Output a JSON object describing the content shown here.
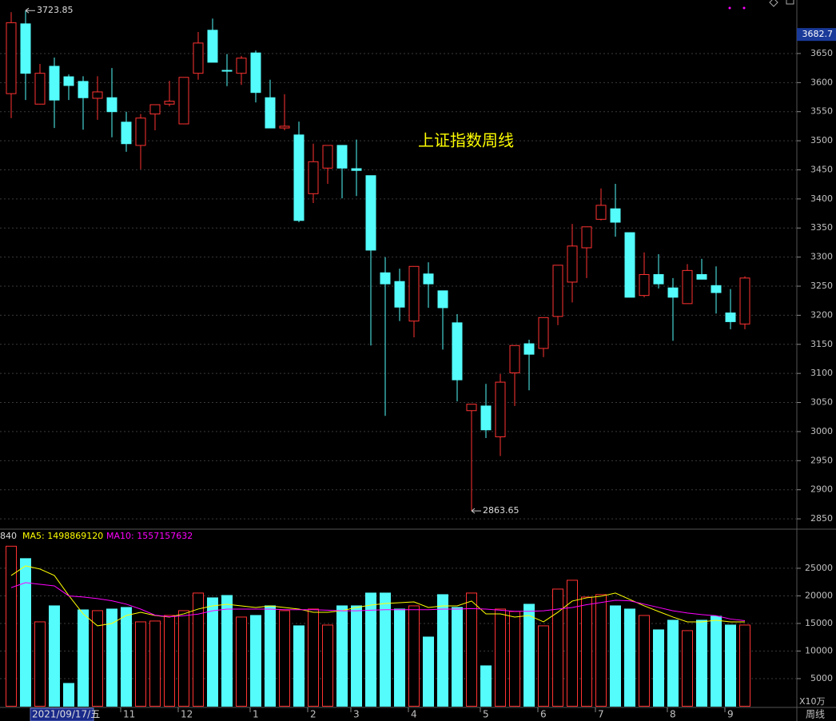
{
  "chart_data": {
    "type": "candlestick",
    "title": "上证指数周线",
    "up_color": "#ff3232",
    "down_color": "#54fcfc",
    "grid": true,
    "ylim": [
      2835,
      3742
    ],
    "yticks": [
      2850,
      2900,
      2950,
      3000,
      3050,
      3100,
      3150,
      3200,
      3250,
      3300,
      3350,
      3400,
      3450,
      3500,
      3550,
      3600,
      3650
    ],
    "price_marker": 3682.7,
    "cursor_date": "2021/09/17/五",
    "period_label": "周线",
    "categories": [
      null,
      null,
      null,
      null,
      null,
      null,
      null,
      null,
      "11",
      null,
      null,
      null,
      "12",
      null,
      null,
      null,
      null,
      "1",
      null,
      null,
      null,
      "2",
      null,
      null,
      "3",
      null,
      null,
      null,
      "4",
      null,
      null,
      null,
      null,
      "5",
      null,
      null,
      null,
      "6",
      null,
      null,
      null,
      "7",
      null,
      null,
      null,
      null,
      "8",
      null,
      null,
      null,
      "9",
      null
    ],
    "open": [
      3581,
      3701,
      3563,
      3628,
      3610,
      3602,
      3573,
      3574,
      3532,
      3492,
      3546,
      3563,
      3529,
      3616,
      3690,
      3621,
      3616,
      3651,
      3574,
      3522,
      3510,
      3409,
      3453,
      3492,
      3452,
      3440,
      3273,
      3258,
      3190,
      3271,
      3242,
      3187,
      3036,
      3044,
      2991,
      3101,
      3151,
      3143,
      3198,
      3257,
      3316,
      3365,
      3383,
      3342,
      3234,
      3270,
      3247,
      3220,
      3270,
      3251,
      3204,
      3185
    ],
    "high": [
      3721,
      3723.85,
      3632,
      3643,
      3614,
      3611,
      3611,
      3625,
      3550,
      3546,
      3562,
      3603,
      3609,
      3687,
      3710,
      3649,
      3646,
      3655,
      3605,
      3580,
      3533,
      3495,
      3492,
      3492,
      3502,
      3440,
      3300,
      3280,
      3284,
      3291,
      3242,
      3202,
      3047,
      3082,
      3099,
      3148,
      3158,
      3196,
      3286,
      3357,
      3352,
      3418,
      3426,
      3342,
      3308,
      3305,
      3264,
      3288,
      3297,
      3284,
      3245,
      3267
    ],
    "low": [
      3539,
      3570,
      3563,
      3522,
      3570,
      3519,
      3536,
      3506,
      3481,
      3451,
      3518,
      3559,
      3529,
      3605,
      3635,
      3594,
      3596,
      3566,
      3522,
      3518,
      3360,
      3393,
      3426,
      3401,
      3405,
      3148,
      3027,
      3190,
      3162,
      3213,
      3141,
      3052,
      2863.65,
      2989,
      2958,
      3044,
      3071,
      3128,
      3183,
      3222,
      3264,
      3363,
      3335,
      3231,
      3231,
      3246,
      3156,
      3220,
      3262,
      3203,
      3176,
      3176
    ],
    "close": [
      3703,
      3616,
      3616,
      3570,
      3595,
      3574,
      3584,
      3550,
      3495,
      3539,
      3562,
      3568,
      3609,
      3668,
      3635,
      3620,
      3642,
      3583,
      3522,
      3525,
      3363,
      3464,
      3492,
      3453,
      3449,
      3312,
      3254,
      3214,
      3284,
      3254,
      3213,
      3089,
      3047,
      3003,
      3085,
      3148,
      3133,
      3196,
      3286,
      3319,
      3352,
      3389,
      3360,
      3231,
      3270,
      3254,
      3231,
      3277,
      3262,
      3239,
      3189,
      3264
    ],
    "volume": {
      "type": "bar",
      "header": "840",
      "unit_label": "X10万",
      "ylim": [
        0,
        31800
      ],
      "yticks": [
        5000,
        10000,
        15000,
        20000,
        25000
      ],
      "values": [
        29000,
        26750,
        15290,
        18190,
        4130,
        17460,
        17320,
        17610,
        17900,
        15290,
        15440,
        16450,
        17320,
        20510,
        19640,
        20070,
        16160,
        16450,
        18190,
        17320,
        14570,
        17610,
        14710,
        18190,
        18190,
        20510,
        20510,
        17610,
        18190,
        12540,
        20220,
        17900,
        20510,
        7320,
        17610,
        17170,
        18480,
        14570,
        21230,
        22830,
        19780,
        20220,
        18190,
        17610,
        16450,
        13840,
        15580,
        13700,
        15580,
        16300,
        14710,
        14710
      ],
      "series": [
        {
          "label": "MA5: 1498869120",
          "color": "#ffff00",
          "values": [
            23700,
            25440,
            24860,
            23700,
            20070,
            16740,
            14570,
            15000,
            16450,
            17030,
            16450,
            16160,
            16740,
            17610,
            18190,
            18480,
            18190,
            17900,
            18190,
            17900,
            17610,
            17030,
            17030,
            17320,
            17900,
            18330,
            18620,
            18770,
            18910,
            17900,
            18190,
            18190,
            19060,
            16740,
            16740,
            16160,
            16450,
            15290,
            17030,
            19060,
            19640,
            19930,
            20510,
            19350,
            18190,
            17170,
            16160,
            15290,
            15290,
            15580,
            15290,
            15290
          ]
        },
        {
          "label": "MA10: 1557157632",
          "color": "#ff00ff",
          "values": [
            21500,
            22400,
            22100,
            21800,
            20000,
            19800,
            19500,
            19100,
            18500,
            17600,
            16500,
            16200,
            16400,
            16700,
            17300,
            17600,
            17600,
            17600,
            17600,
            17500,
            17500,
            17500,
            17400,
            17300,
            17300,
            17400,
            17500,
            17500,
            17500,
            17500,
            17600,
            17600,
            17700,
            17600,
            17400,
            17200,
            17200,
            17300,
            17600,
            17900,
            18400,
            18800,
            19200,
            19100,
            18500,
            17900,
            17300,
            16900,
            16600,
            16400,
            15800,
            15500
          ]
        }
      ]
    }
  }
}
